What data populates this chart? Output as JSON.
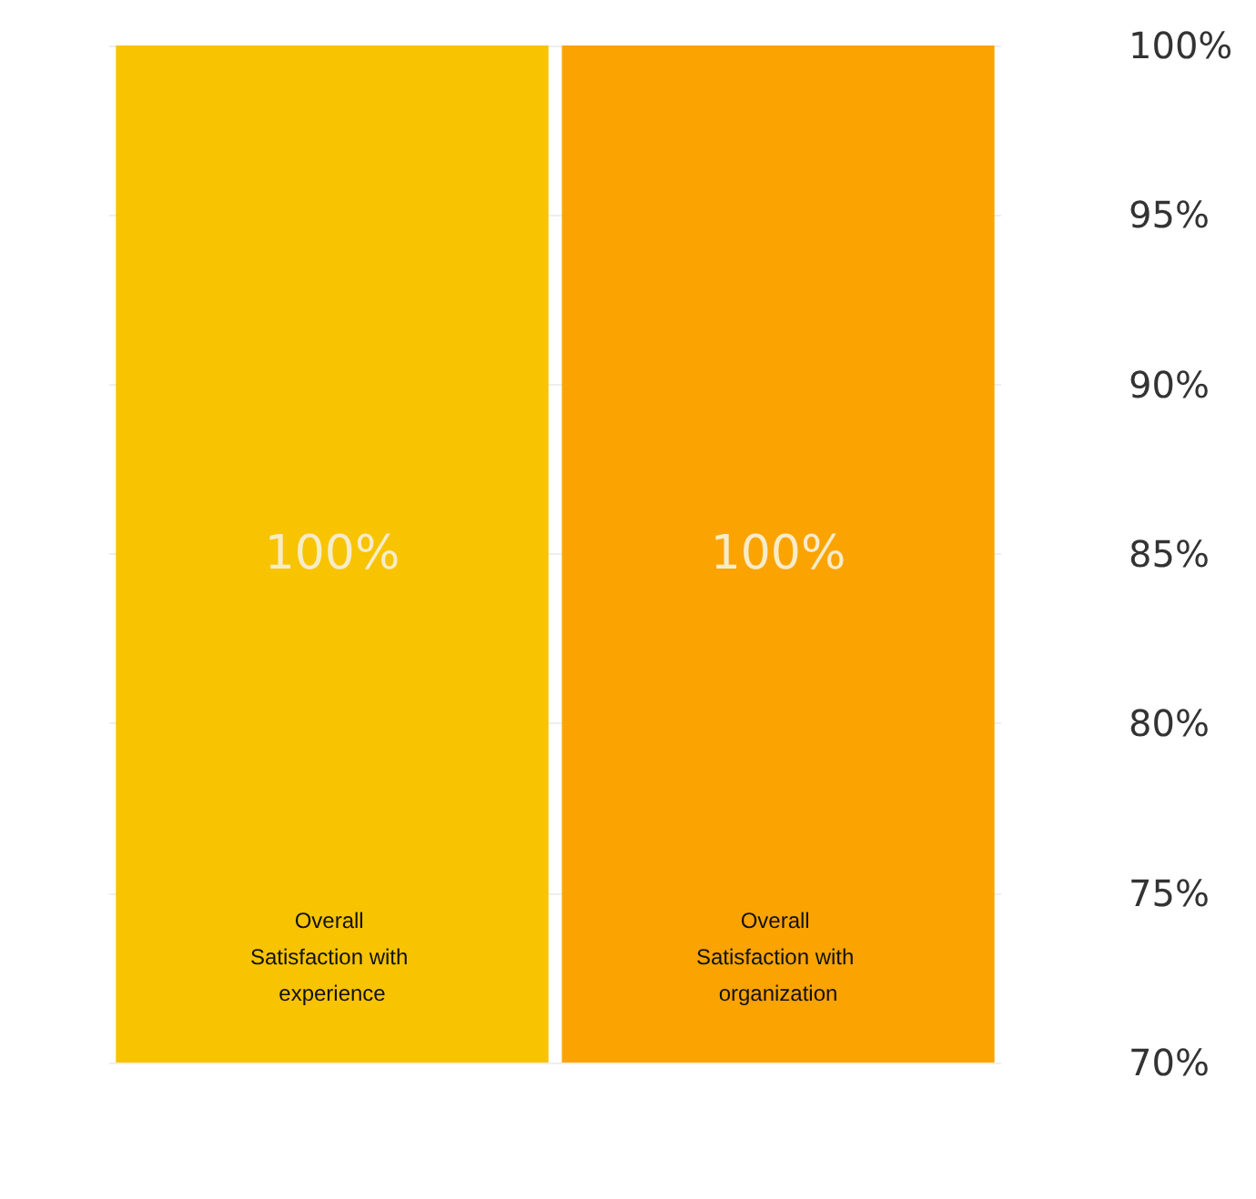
{
  "chart_data": {
    "type": "bar",
    "categories": [
      "Overall Satisfaction with experience",
      "Overall Satisfaction with organization"
    ],
    "values": [
      100,
      100
    ],
    "colors": [
      "#f8c300",
      "#fba300"
    ],
    "value_labels": [
      "100%",
      "100%"
    ],
    "ylim": [
      70,
      100
    ],
    "yticks": [
      {
        "value": 70,
        "label": "70%"
      },
      {
        "value": 75,
        "label": "75%"
      },
      {
        "value": 80,
        "label": "80%"
      },
      {
        "value": 85,
        "label": "85%"
      },
      {
        "value": 90,
        "label": "90%"
      },
      {
        "value": 95,
        "label": "95%"
      },
      {
        "value": 100,
        "label": "100%"
      }
    ],
    "grid": "y"
  }
}
